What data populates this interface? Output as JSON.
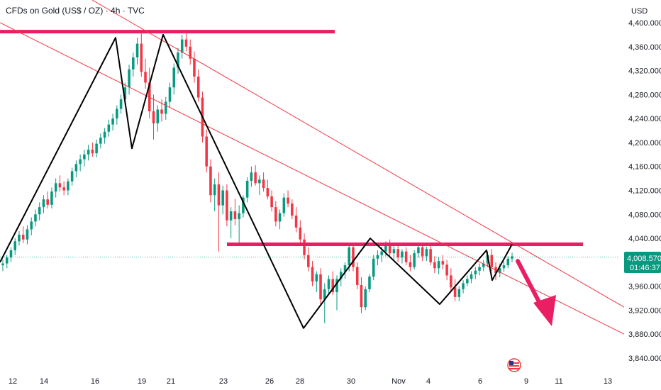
{
  "header": {
    "title": "CFDs on Gold (US$ / OZ) · 4h · TVC"
  },
  "axis": {
    "currency": "USD"
  },
  "price_tag": {
    "price": "4,008.570",
    "countdown": "01:46:37"
  },
  "chart_data": {
    "type": "candlestick",
    "title": "CFDs on Gold (US$ / OZ) · 4h · TVC",
    "ylabel": "USD",
    "ylim": [
      3810,
      4420
    ],
    "y_ticks": [
      "4,400.000",
      "4,360.000",
      "4,320.000",
      "4,280.000",
      "4,240.000",
      "4,200.000",
      "4,160.000",
      "4,120.000",
      "4,080.000",
      "4,040.000",
      "3,960.000",
      "3,920.000",
      "3,880.000",
      "3,840.000"
    ],
    "x_ticks": [
      "12",
      "14",
      "16",
      "19",
      "21",
      "23",
      "26",
      "28",
      "30",
      "Nov",
      "4",
      "6",
      "9",
      "11",
      "13"
    ],
    "last_price": 4008.57,
    "colors": {
      "up": "#089981",
      "down": "#f23645",
      "annotation": "#e91e63",
      "pattern": "#000000",
      "trend": "#f23645"
    },
    "candles": [
      [
        3995,
        4005,
        3985,
        3998
      ],
      [
        3998,
        4012,
        3990,
        4008
      ],
      [
        4008,
        4025,
        4000,
        4020
      ],
      [
        4020,
        4040,
        4012,
        4035
      ],
      [
        4035,
        4052,
        4028,
        4046
      ],
      [
        4046,
        4060,
        4032,
        4038
      ],
      [
        4038,
        4062,
        4030,
        4055
      ],
      [
        4055,
        4075,
        4045,
        4068
      ],
      [
        4068,
        4088,
        4060,
        4080
      ],
      [
        4080,
        4100,
        4070,
        4092
      ],
      [
        4092,
        4112,
        4082,
        4105
      ],
      [
        4105,
        4118,
        4090,
        4096
      ],
      [
        4096,
        4125,
        4090,
        4118
      ],
      [
        4118,
        4140,
        4108,
        4132
      ],
      [
        4132,
        4145,
        4118,
        4125
      ],
      [
        4125,
        4135,
        4112,
        4120
      ],
      [
        4120,
        4140,
        4112,
        4135
      ],
      [
        4135,
        4158,
        4128,
        4152
      ],
      [
        4152,
        4170,
        4142,
        4164
      ],
      [
        4164,
        4180,
        4152,
        4172
      ],
      [
        4172,
        4188,
        4160,
        4180
      ],
      [
        4180,
        4196,
        4170,
        4188
      ],
      [
        4188,
        4200,
        4176,
        4182
      ],
      [
        4182,
        4205,
        4175,
        4198
      ],
      [
        4198,
        4215,
        4190,
        4208
      ],
      [
        4208,
        4224,
        4198,
        4218
      ],
      [
        4218,
        4238,
        4210,
        4230
      ],
      [
        4230,
        4248,
        4220,
        4240
      ],
      [
        4240,
        4262,
        4230,
        4256
      ],
      [
        4256,
        4280,
        4248,
        4272
      ],
      [
        4272,
        4300,
        4262,
        4292
      ],
      [
        4292,
        4330,
        4280,
        4322
      ],
      [
        4322,
        4350,
        4310,
        4342
      ],
      [
        4342,
        4375,
        4330,
        4365
      ],
      [
        4365,
        4382,
        4310,
        4318
      ],
      [
        4318,
        4340,
        4290,
        4300
      ],
      [
        4300,
        4325,
        4240,
        4252
      ],
      [
        4252,
        4280,
        4205,
        4232
      ],
      [
        4232,
        4262,
        4218,
        4255
      ],
      [
        4255,
        4272,
        4235,
        4248
      ],
      [
        4248,
        4276,
        4238,
        4268
      ],
      [
        4268,
        4300,
        4258,
        4292
      ],
      [
        4292,
        4332,
        4280,
        4325
      ],
      [
        4325,
        4358,
        4315,
        4350
      ],
      [
        4350,
        4380,
        4340,
        4372
      ],
      [
        4372,
        4382,
        4352,
        4360
      ],
      [
        4360,
        4372,
        4330,
        4340
      ],
      [
        4340,
        4352,
        4300,
        4310
      ],
      [
        4310,
        4322,
        4268,
        4275
      ],
      [
        4275,
        4285,
        4200,
        4210
      ],
      [
        4210,
        4222,
        4150,
        4160
      ],
      [
        4160,
        4172,
        4100,
        4112
      ],
      [
        4112,
        4140,
        4085,
        4130
      ],
      [
        4130,
        4150,
        4018,
        4095
      ],
      [
        4095,
        4128,
        4080,
        4120
      ],
      [
        4120,
        4130,
        4060,
        4070
      ],
      [
        4070,
        4092,
        4040,
        4085
      ],
      [
        4085,
        4106,
        4062,
        4072
      ],
      [
        4072,
        4095,
        4028,
        4082
      ],
      [
        4082,
        4112,
        4075,
        4108
      ],
      [
        4108,
        4142,
        4100,
        4136
      ],
      [
        4136,
        4160,
        4126,
        4150
      ],
      [
        4150,
        4162,
        4128,
        4132
      ],
      [
        4132,
        4145,
        4112,
        4138
      ],
      [
        4138,
        4150,
        4118,
        4124
      ],
      [
        4124,
        4138,
        4105,
        4110
      ],
      [
        4110,
        4120,
        4085,
        4092
      ],
      [
        4092,
        4102,
        4060,
        4068
      ],
      [
        4068,
        4088,
        4055,
        4082
      ],
      [
        4082,
        4115,
        4076,
        4108
      ],
      [
        4108,
        4120,
        4092,
        4098
      ],
      [
        4098,
        4105,
        4072,
        4078
      ],
      [
        4078,
        4092,
        4050,
        4058
      ],
      [
        4058,
        4070,
        4030,
        4038
      ],
      [
        4038,
        4048,
        4005,
        4012
      ],
      [
        4012,
        4025,
        3985,
        3992
      ],
      [
        3992,
        4002,
        3960,
        3968
      ],
      [
        3968,
        3985,
        3950,
        3980
      ],
      [
        3980,
        3990,
        3930,
        3938
      ],
      [
        3938,
        3965,
        3898,
        3955
      ],
      [
        3955,
        3978,
        3946,
        3972
      ],
      [
        3972,
        3985,
        3945,
        3950
      ],
      [
        3950,
        3978,
        3920,
        3972
      ],
      [
        3972,
        3990,
        3960,
        3984
      ],
      [
        3984,
        4000,
        3972,
        3995
      ],
      [
        3995,
        4030,
        3985,
        4025
      ],
      [
        4025,
        4032,
        3985,
        3992
      ],
      [
        3992,
        4000,
        3955,
        3962
      ],
      [
        3962,
        3975,
        3915,
        3925
      ],
      [
        3925,
        3960,
        3920,
        3955
      ],
      [
        3955,
        3980,
        3950,
        3976
      ],
      [
        3976,
        4012,
        3970,
        4006
      ],
      [
        4006,
        4020,
        3995,
        4012
      ],
      [
        4012,
        4026,
        4000,
        4018
      ],
      [
        4018,
        4035,
        4010,
        4028
      ],
      [
        4028,
        4038,
        4010,
        4015
      ],
      [
        4015,
        4028,
        4005,
        4022
      ],
      [
        4022,
        4030,
        4000,
        4008
      ],
      [
        4008,
        4022,
        3998,
        4018
      ],
      [
        4018,
        4025,
        3995,
        4000
      ],
      [
        4000,
        4012,
        3985,
        3992
      ],
      [
        3992,
        4020,
        3988,
        4015
      ],
      [
        4015,
        4030,
        4008,
        4025
      ],
      [
        4025,
        4032,
        4002,
        4010
      ],
      [
        4010,
        4026,
        4002,
        4022
      ],
      [
        4022,
        4030,
        3995,
        4000
      ],
      [
        4000,
        4010,
        3982,
        3990
      ],
      [
        3990,
        4008,
        3980,
        4002
      ],
      [
        4002,
        4012,
        3988,
        3996
      ],
      [
        3996,
        4004,
        3970,
        3978
      ],
      [
        3978,
        3990,
        3950,
        3958
      ],
      [
        3958,
        3972,
        3935,
        3942
      ],
      [
        3942,
        3960,
        3935,
        3955
      ],
      [
        3955,
        3970,
        3948,
        3965
      ],
      [
        3965,
        3978,
        3960,
        3972
      ],
      [
        3972,
        3985,
        3965,
        3980
      ],
      [
        3980,
        3992,
        3972,
        3986
      ],
      [
        3986,
        3998,
        3978,
        3992
      ],
      [
        3992,
        4004,
        3985,
        3998
      ],
      [
        3998,
        4018,
        3992,
        4012
      ],
      [
        4012,
        4022,
        3985,
        3992
      ],
      [
        3992,
        4000,
        3970,
        3982
      ],
      [
        3982,
        3998,
        3975,
        3990
      ],
      [
        3990,
        4002,
        3984,
        3995
      ],
      [
        3995,
        4010,
        3990,
        4006
      ],
      [
        4006,
        4016,
        4000,
        4010
      ]
    ]
  }
}
